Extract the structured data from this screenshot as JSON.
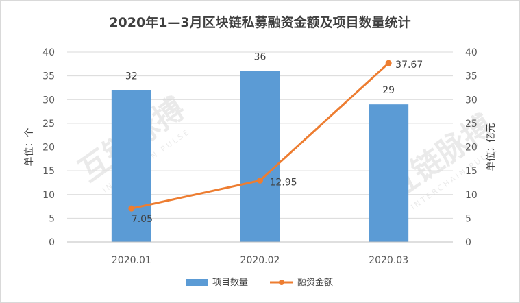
{
  "watermark": "互链脉搏",
  "watermark_sub": "INTERCHAIN PULSE",
  "chart_data": {
    "type": "bar",
    "title": "2020年1—3月区块链私募融资金额及项目数量统计",
    "categories": [
      "2020.01",
      "2020.02",
      "2020.03"
    ],
    "series": [
      {
        "name": "项目数量",
        "type": "bar",
        "axis": "left",
        "color": "#5b9bd5",
        "values": [
          32,
          36,
          29
        ],
        "labels": [
          "32",
          "36",
          "29"
        ]
      },
      {
        "name": "融资金额",
        "type": "line",
        "axis": "right",
        "color": "#ed7d31",
        "values": [
          7.05,
          12.95,
          37.67
        ],
        "labels": [
          "7.05",
          "12.95",
          "37.67"
        ]
      }
    ],
    "ylabel": "单位：个",
    "ylabel_right": "单位：亿元",
    "ylim": [
      0,
      40
    ],
    "ylim_right": [
      0,
      40
    ],
    "yticks": [
      "0",
      "5",
      "10",
      "15",
      "20",
      "25",
      "30",
      "35",
      "40"
    ],
    "yticks_right": [
      "0",
      "5",
      "10",
      "15",
      "20",
      "25",
      "30",
      "35",
      "40"
    ],
    "grid": true,
    "legend_position": "bottom"
  }
}
